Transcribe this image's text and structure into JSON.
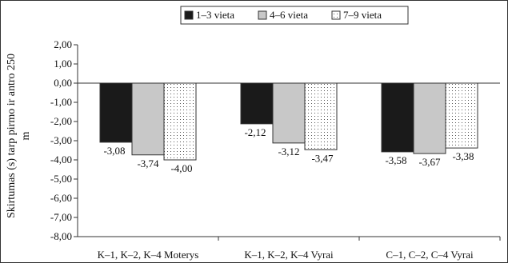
{
  "chart_data": {
    "type": "bar",
    "categories": [
      "K–1, K–2, K–4 Moterys",
      "K–1, K–2, K–4  Vyrai",
      "C–1, C–2, C–4 Vyrai"
    ],
    "series": [
      {
        "name": "1–3 vieta",
        "values": [
          -3.08,
          -2.12,
          -3.58
        ],
        "labels": [
          "-3,08",
          "-2,12",
          "-3,58"
        ],
        "color": "#1a1a1a",
        "pattern": "solid"
      },
      {
        "name": "4–6 vieta",
        "values": [
          -3.74,
          -3.12,
          -3.67
        ],
        "labels": [
          "-3,74",
          "-3,12",
          "-3,67"
        ],
        "color": "#c8c8c8",
        "pattern": "solid"
      },
      {
        "name": "7–9 vieta",
        "values": [
          -4.0,
          -3.47,
          -3.38
        ],
        "labels": [
          "-4,00",
          "-3,47",
          "-3,38"
        ],
        "color": "#ffffff",
        "pattern": "dots"
      }
    ],
    "ylabel_line1": "Skirtumas (s) tarp pirmo ir antro 250",
    "ylabel_line2": "m",
    "ylim": [
      -8,
      2
    ],
    "yticks": [
      2,
      1,
      0,
      -1,
      -2,
      -3,
      -4,
      -5,
      -6,
      -7,
      -8
    ],
    "ytick_labels": [
      "2,00",
      "1,00",
      "0,00",
      "-1,00",
      "-2,00",
      "-3,00",
      "-4,00",
      "-5,00",
      "-6,00",
      "-7,00",
      "-8,00"
    ],
    "grid": false,
    "legend_position": "top"
  }
}
